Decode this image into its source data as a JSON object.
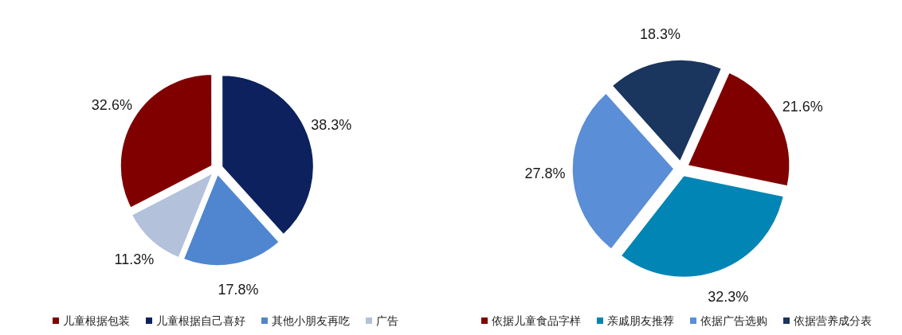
{
  "chart_data": [
    {
      "type": "pie",
      "categories": [
        "儿童根据包装",
        "儿童根据自己喜好",
        "其他小朋友再吃",
        "广告"
      ],
      "values": [
        32.6,
        38.3,
        17.8,
        11.3
      ],
      "colors": [
        "#800000",
        "#0c215e",
        "#4f86cf",
        "#b3c1db"
      ],
      "value_labels": [
        "32.6%",
        "38.3%",
        "17.8%",
        "11.3%"
      ],
      "legend": "bottom"
    },
    {
      "type": "pie",
      "categories": [
        "依据儿童食品字样",
        "亲戚朋友推荐",
        "依据广告选购",
        "依据营养成分表"
      ],
      "values": [
        21.6,
        32.3,
        27.8,
        18.3
      ],
      "colors": [
        "#800000",
        "#0085b5",
        "#5a8ed6",
        "#1a355e"
      ],
      "value_labels": [
        "21.6%",
        "32.3%",
        "27.8%",
        "18.3%"
      ],
      "legend": "bottom"
    }
  ]
}
